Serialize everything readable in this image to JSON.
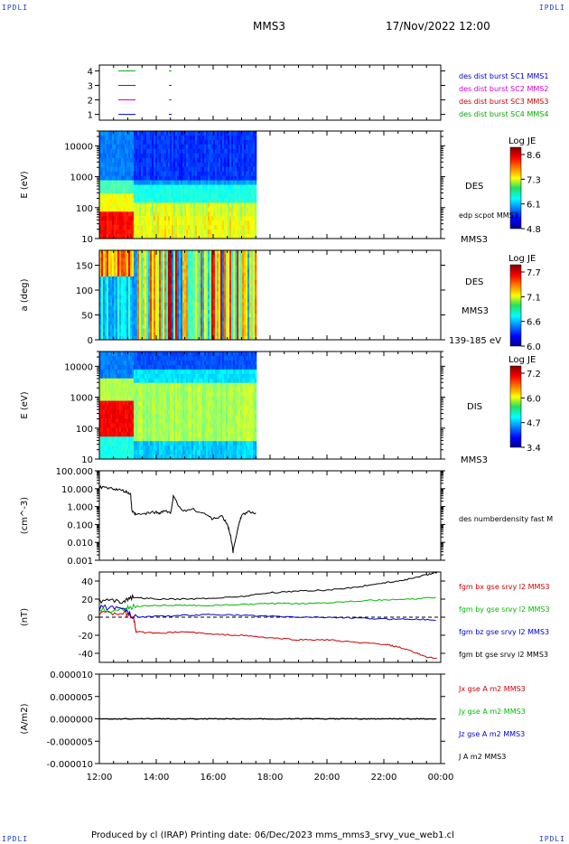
{
  "header": {
    "corner_left": "IPDLI",
    "corner_right": "IPDLI",
    "spacecraft": "MMS3",
    "datetime": "17/Nov/2022 12:00"
  },
  "footer": {
    "text": "Produced by cl (IRAP)   Printing date: 06/Dec/2023   mms_mms3_srvy_vue_web1.cl",
    "corner_left": "IPDLI",
    "corner_right": "IPDLI"
  },
  "colors": {
    "c1": "#0000cc",
    "c2": "#cc00cc",
    "c3": "#cc0000",
    "c4": "#00aa00",
    "bx": "#cc0000",
    "by": "#00bb00",
    "bz": "#0000cc",
    "bt": "#000000"
  },
  "chart_data": [
    {
      "id": "burst",
      "type": "line",
      "yticks": [
        "4",
        "3",
        "2",
        "1"
      ],
      "ylim": [
        0.6,
        4.4
      ],
      "series": [
        {
          "name": "des dist burst SC1 MMS1",
          "level": 1,
          "color": "#0000cc"
        },
        {
          "name": "des dist burst SC2 MMS2",
          "level": 2,
          "color": "#cc00cc"
        },
        {
          "name": "des dist burst SC3 MMS3",
          "level": 3,
          "color": "#cc0000"
        },
        {
          "name": "des dist burst SC4 MMS4",
          "level": 4,
          "color": "#00aa00"
        }
      ]
    },
    {
      "id": "des_energy",
      "type": "heatmap",
      "ylabel": "E (eV)",
      "yticks": [
        "10000",
        "1000",
        "100",
        "10"
      ],
      "ylim": [
        10,
        30000
      ],
      "yscale": "log",
      "labels": [
        "DES",
        "edp scpot MMS3",
        "MMS3"
      ],
      "colorbar": {
        "title": "Log JE",
        "ticks": [
          "8.6",
          "7.3",
          "6.1",
          "4.8"
        ]
      },
      "x_data_end": "17:30"
    },
    {
      "id": "des_pitch",
      "type": "heatmap",
      "ylabel": "a (deg)",
      "yticks": [
        "150",
        "100",
        "50",
        "0"
      ],
      "ylim": [
        0,
        180
      ],
      "labels": [
        "DES",
        "MMS3",
        "139-185 eV"
      ],
      "colorbar": {
        "title": "Log JE",
        "ticks": [
          "7.7",
          "7.1",
          "6.6",
          "6.0"
        ]
      },
      "x_data_end": "17:30"
    },
    {
      "id": "dis_energy",
      "type": "heatmap",
      "ylabel": "E (eV)",
      "yticks": [
        "10000",
        "1000",
        "100",
        "10"
      ],
      "ylim": [
        10,
        30000
      ],
      "yscale": "log",
      "labels": [
        "DIS",
        "MMS3"
      ],
      "colorbar": {
        "title": "Log JE",
        "ticks": [
          "7.2",
          "6.0",
          "4.7",
          "3.4"
        ]
      },
      "x_data_end": "17:30"
    },
    {
      "id": "density",
      "type": "line",
      "ylabel": "(cm^-3)",
      "yticks": [
        "100.000",
        "10.000",
        "1.000",
        "0.100",
        "0.010",
        "0.001"
      ],
      "ylim": [
        0.001,
        100
      ],
      "yscale": "log",
      "series": [
        {
          "name": "des numberdensity fast M",
          "color": "#000000",
          "x": [
            12.0,
            12.3,
            12.6,
            12.9,
            13.1,
            13.15,
            13.3,
            13.6,
            13.9,
            14.1,
            14.3,
            14.5,
            14.6,
            14.9,
            15.3,
            15.7,
            16.0,
            16.3,
            16.5,
            16.6,
            16.7,
            16.8,
            16.9,
            17.0,
            17.2,
            17.5
          ],
          "y": [
            12,
            11,
            9,
            7,
            5,
            0.5,
            0.35,
            0.4,
            0.5,
            0.45,
            0.6,
            0.4,
            3.5,
            0.6,
            0.7,
            0.4,
            0.2,
            0.3,
            0.1,
            0.03,
            0.003,
            0.02,
            0.1,
            0.3,
            0.5,
            0.45
          ]
        }
      ]
    },
    {
      "id": "fgm",
      "type": "line",
      "ylabel": "(nT)",
      "yticks": [
        "40",
        "20",
        "0",
        "-20",
        "-40"
      ],
      "ylim": [
        -50,
        50
      ],
      "series": [
        {
          "name": "fgm bx gse srvy l2 MMS3",
          "color": "#cc0000",
          "x": [
            12.0,
            12.8,
            13.2,
            13.3,
            14.0,
            15.0,
            16.0,
            17.0,
            18.0,
            19.0,
            20.0,
            21.0,
            22.0,
            22.5,
            23.0,
            23.5,
            23.9
          ],
          "y": [
            5,
            5,
            0,
            -16,
            -18,
            -16,
            -19,
            -20,
            -23,
            -25,
            -25,
            -28,
            -30,
            -33,
            -38,
            -44,
            -46
          ]
        },
        {
          "name": "fgm by gse srvy l2 MMS3",
          "color": "#00bb00",
          "x": [
            12.0,
            12.8,
            13.2,
            14.0,
            15.0,
            16.0,
            17.0,
            18.0,
            19.0,
            20.0,
            21.0,
            22.0,
            23.0,
            23.9
          ],
          "y": [
            8,
            8,
            12,
            13,
            13,
            13,
            14,
            15,
            15,
            16,
            18,
            19,
            20,
            22
          ]
        },
        {
          "name": "fgm bz gse srvy l2 MMS3",
          "color": "#0000cc",
          "x": [
            12.0,
            12.8,
            13.2,
            14.0,
            15.0,
            16.0,
            17.0,
            18.0,
            19.0,
            20.0,
            21.0,
            22.0,
            23.0,
            23.9
          ],
          "y": [
            10,
            12,
            0,
            1,
            2,
            3,
            2,
            1,
            0,
            0,
            -1,
            -2,
            -2,
            -3
          ]
        },
        {
          "name": "fgm bt gse srvy l2 MMS3",
          "color": "#000000",
          "x": [
            12.0,
            12.8,
            13.2,
            14.0,
            15.0,
            16.0,
            17.0,
            18.0,
            19.0,
            20.0,
            21.0,
            22.0,
            22.5,
            23.0,
            23.5,
            23.9
          ],
          "y": [
            18,
            18,
            22,
            20,
            20,
            21,
            23,
            27,
            29,
            30,
            33,
            38,
            40,
            43,
            47,
            50
          ]
        }
      ]
    },
    {
      "id": "current",
      "type": "line",
      "ylabel": "(A/m2)",
      "yticks": [
        "0.000010",
        "0.000005",
        "0.000000",
        "-0.000005",
        "-0.000010"
      ],
      "ylim": [
        -1e-05,
        1e-05
      ],
      "series": [
        {
          "name": "Jx gse A m2 MMS3",
          "color": "#cc0000"
        },
        {
          "name": "Jy gse A m2 MMS3",
          "color": "#00bb00"
        },
        {
          "name": "Jz gse A m2 MMS3",
          "color": "#0000cc"
        },
        {
          "name": "J A m2 MMS3",
          "color": "#000000",
          "x": [
            12.0,
            23.9
          ],
          "y": [
            0,
            0
          ]
        }
      ]
    }
  ],
  "xaxis": {
    "ticks": [
      "12:00",
      "14:00",
      "16:00",
      "18:00",
      "20:00",
      "22:00",
      "00:00"
    ],
    "range_hours": [
      12,
      24
    ]
  }
}
